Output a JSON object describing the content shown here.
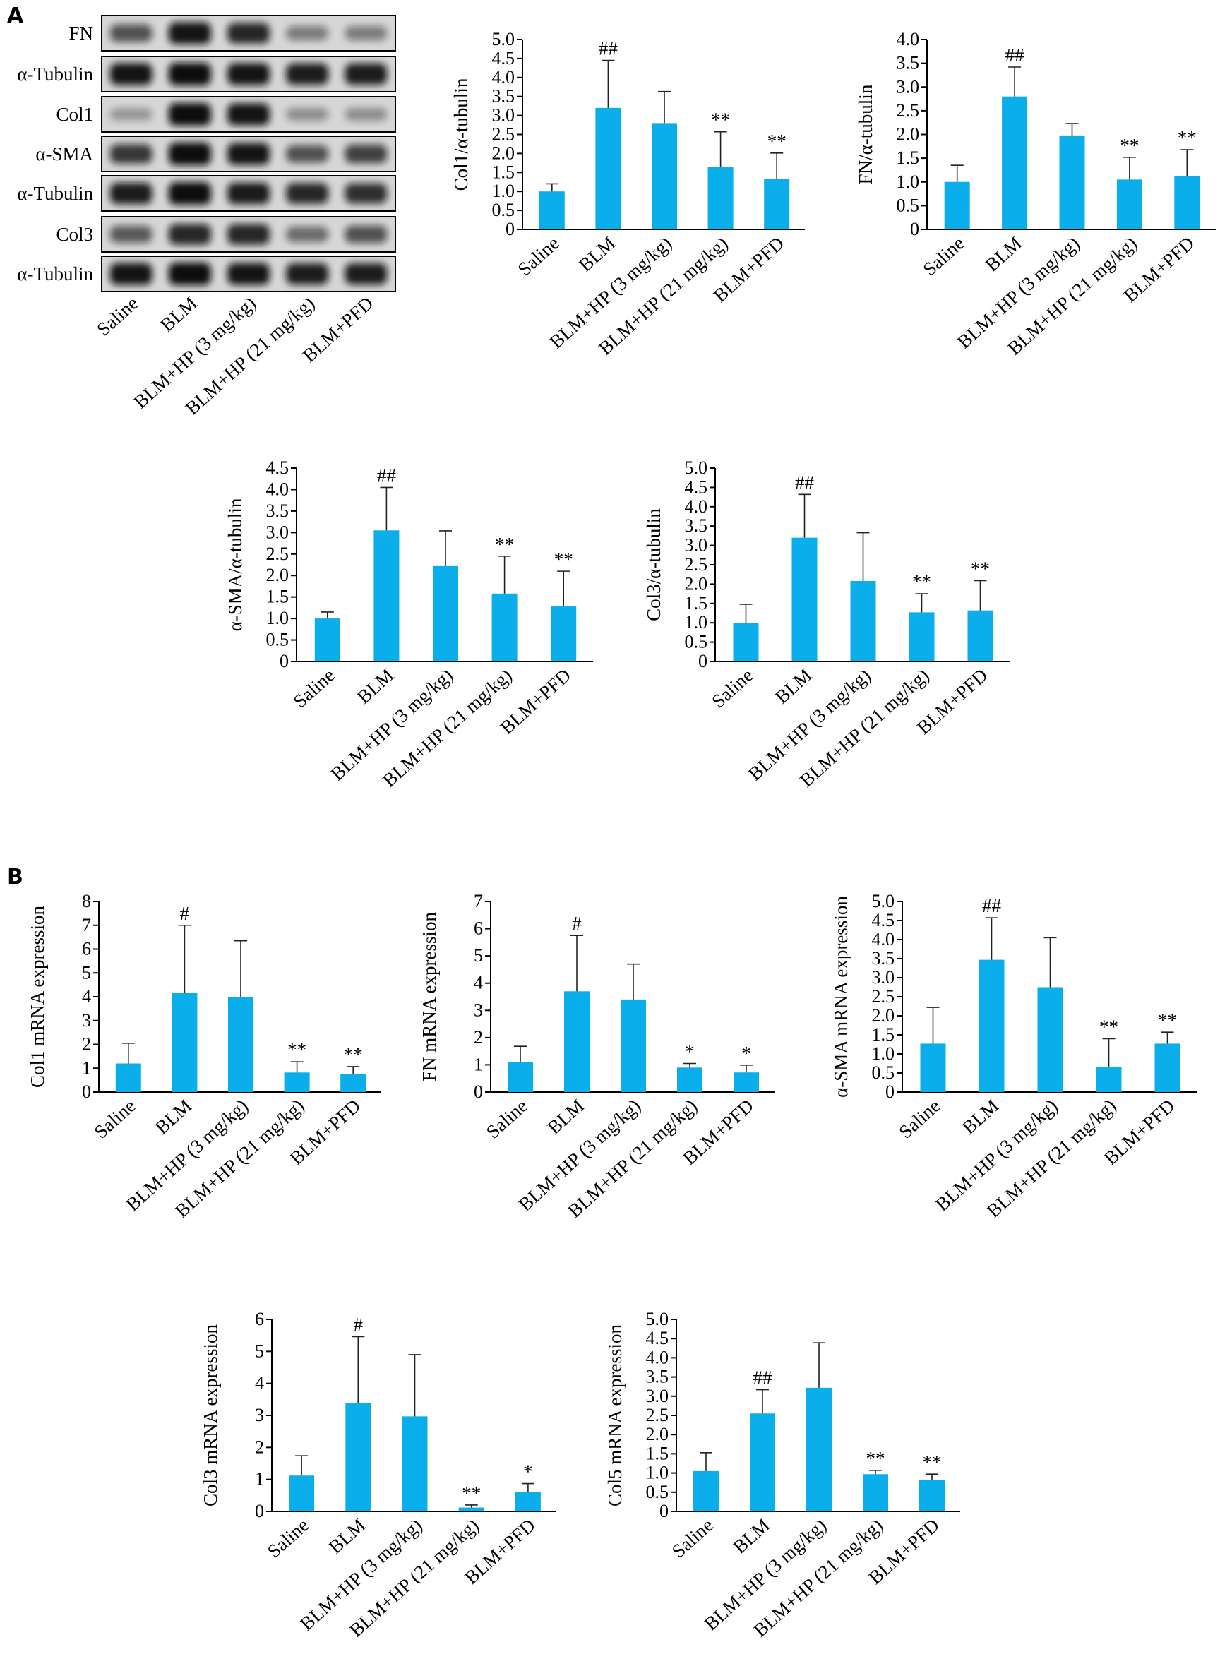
{
  "panel_labels": [
    "A",
    "B"
  ],
  "colors": {
    "bar": "#0aaeea",
    "axis": "#000000",
    "errorbar": "#222222",
    "blot_bg": "#d6d6d6",
    "blot_band": "#111111"
  },
  "blot": {
    "rows": [
      "FN",
      "α-Tubulin",
      "Col1",
      "α-SMA",
      "α-Tubulin",
      "Col3",
      "α-Tubulin"
    ],
    "lanes": [
      "Saline",
      "BLM",
      "BLM+HP (3 mg/kg)",
      "BLM+HP (21 mg/kg)",
      "BLM+PFD"
    ],
    "intensity": [
      [
        0.6,
        0.95,
        0.85,
        0.35,
        0.35
      ],
      [
        0.95,
        1.0,
        0.95,
        0.9,
        0.9
      ],
      [
        0.2,
        1.0,
        0.95,
        0.25,
        0.25
      ],
      [
        0.75,
        1.0,
        0.95,
        0.6,
        0.7
      ],
      [
        0.9,
        1.0,
        0.92,
        0.85,
        0.8
      ],
      [
        0.55,
        0.85,
        0.85,
        0.45,
        0.6
      ],
      [
        0.95,
        1.0,
        0.95,
        0.9,
        0.9
      ]
    ]
  },
  "chart_data": [
    {
      "type": "bar",
      "panel": "A",
      "categories": [
        "Saline",
        "BLM",
        "BLM+HP (3 mg/kg)",
        "BLM+HP (21 mg/kg)",
        "BLM+PFD"
      ],
      "values": [
        1.0,
        3.2,
        2.8,
        1.65,
        1.33
      ],
      "errors": [
        0.2,
        1.25,
        0.83,
        0.92,
        0.68
      ],
      "annotations": [
        "",
        "##",
        "",
        "**",
        "**"
      ],
      "ylabel": "Col1/α-tubulin",
      "ylim": [
        0,
        5.0
      ],
      "yticks": [
        "0",
        "0.5",
        "1.0",
        "1.5",
        "2.0",
        "2.5",
        "3.0",
        "3.5",
        "4.0",
        "4.5",
        "5.0"
      ],
      "ymax": 5.0
    },
    {
      "type": "bar",
      "panel": "A",
      "categories": [
        "Saline",
        "BLM",
        "BLM+HP (3 mg/kg)",
        "BLM+HP (21 mg/kg)",
        "BLM+PFD"
      ],
      "values": [
        1.0,
        2.8,
        1.98,
        1.05,
        1.13
      ],
      "errors": [
        0.35,
        0.62,
        0.25,
        0.47,
        0.55
      ],
      "annotations": [
        "",
        "##",
        "",
        "**",
        "**"
      ],
      "ylabel": "FN/α-tubulin",
      "ylim": [
        0,
        4.0
      ],
      "yticks": [
        "0",
        "0.5",
        "1.0",
        "1.5",
        "2.0",
        "2.5",
        "3.0",
        "3.5",
        "4.0"
      ],
      "ymax": 4.0
    },
    {
      "type": "bar",
      "panel": "A",
      "categories": [
        "Saline",
        "BLM",
        "BLM+HP (3 mg/kg)",
        "BLM+HP (21 mg/kg)",
        "BLM+PFD"
      ],
      "values": [
        1.0,
        3.05,
        2.22,
        1.58,
        1.28
      ],
      "errors": [
        0.15,
        1.0,
        0.82,
        0.87,
        0.82
      ],
      "annotations": [
        "",
        "##",
        "",
        "**",
        "**"
      ],
      "ylabel": "α-SMA/α-tubulin",
      "ylim": [
        0,
        4.5
      ],
      "yticks": [
        "0",
        "0.5",
        "1.0",
        "1.5",
        "2.0",
        "2.5",
        "3.0",
        "3.5",
        "4.0",
        "4.5"
      ],
      "ymax": 4.5
    },
    {
      "type": "bar",
      "panel": "A",
      "categories": [
        "Saline",
        "BLM",
        "BLM+HP (3 mg/kg)",
        "BLM+HP (21 mg/kg)",
        "BLM+PFD"
      ],
      "values": [
        1.0,
        3.2,
        2.08,
        1.27,
        1.32
      ],
      "errors": [
        0.48,
        1.12,
        1.25,
        0.48,
        0.77
      ],
      "annotations": [
        "",
        "##",
        "",
        "**",
        "**"
      ],
      "ylabel": "Col3/α-tubulin",
      "ylim": [
        0,
        5.0
      ],
      "yticks": [
        "0",
        "0.5",
        "1.0",
        "1.5",
        "2.0",
        "2.5",
        "3.0",
        "3.5",
        "4.0",
        "4.5",
        "5.0"
      ],
      "ymax": 5.0
    },
    {
      "type": "bar",
      "panel": "B",
      "categories": [
        "Saline",
        "BLM",
        "BLM+HP (3 mg/kg)",
        "BLM+HP (21 mg/kg)",
        "BLM+PFD"
      ],
      "values": [
        1.2,
        4.15,
        4.0,
        0.82,
        0.75
      ],
      "errors": [
        0.85,
        2.85,
        2.35,
        0.45,
        0.32
      ],
      "annotations": [
        "",
        "#",
        "",
        "**",
        "**"
      ],
      "ylabel": "Col1 mRNA expression",
      "ylim": [
        0,
        8
      ],
      "yticks": [
        "0",
        "1",
        "2",
        "3",
        "4",
        "5",
        "6",
        "7",
        "8"
      ],
      "ymax": 8
    },
    {
      "type": "bar",
      "panel": "B",
      "categories": [
        "Saline",
        "BLM",
        "BLM+HP (3 mg/kg)",
        "BLM+HP (21 mg/kg)",
        "BLM+PFD"
      ],
      "values": [
        1.1,
        3.7,
        3.4,
        0.9,
        0.72
      ],
      "errors": [
        0.58,
        2.05,
        1.3,
        0.15,
        0.27
      ],
      "annotations": [
        "",
        "#",
        "",
        "*",
        "*"
      ],
      "ylabel": "FN mRNA expression",
      "ylim": [
        0,
        7
      ],
      "yticks": [
        "0",
        "1",
        "2",
        "3",
        "4",
        "5",
        "6",
        "7"
      ],
      "ymax": 7
    },
    {
      "type": "bar",
      "panel": "B",
      "categories": [
        "Saline",
        "BLM",
        "BLM+HP (3 mg/kg)",
        "BLM+HP (21 mg/kg)",
        "BLM+PFD"
      ],
      "values": [
        1.27,
        3.47,
        2.75,
        0.65,
        1.27
      ],
      "errors": [
        0.95,
        1.1,
        1.3,
        0.75,
        0.3
      ],
      "annotations": [
        "",
        "##",
        "",
        "**",
        "**"
      ],
      "ylabel": "α-SMA mRNA expression",
      "ylim": [
        0,
        5.0
      ],
      "yticks": [
        "0",
        "0.5",
        "1.0",
        "1.5",
        "2.0",
        "2.5",
        "3.0",
        "3.5",
        "4.0",
        "4.5",
        "5.0"
      ],
      "ymax": 5.0
    },
    {
      "type": "bar",
      "panel": "B",
      "categories": [
        "Saline",
        "BLM",
        "BLM+HP (3 mg/kg)",
        "BLM+HP (21 mg/kg)",
        "BLM+PFD"
      ],
      "values": [
        1.12,
        3.38,
        2.97,
        0.12,
        0.6
      ],
      "errors": [
        0.62,
        2.08,
        1.93,
        0.08,
        0.27
      ],
      "annotations": [
        "",
        "#",
        "",
        "**",
        "*"
      ],
      "ylabel": "Col3 mRNA expression",
      "ylim": [
        0,
        6
      ],
      "yticks": [
        "0",
        "1",
        "2",
        "3",
        "4",
        "5",
        "6"
      ],
      "ymax": 6
    },
    {
      "type": "bar",
      "panel": "B",
      "categories": [
        "Saline",
        "BLM",
        "BLM+HP (3 mg/kg)",
        "BLM+HP (21 mg/kg)",
        "BLM+PFD"
      ],
      "values": [
        1.05,
        2.55,
        3.22,
        0.97,
        0.82
      ],
      "errors": [
        0.48,
        0.62,
        1.17,
        0.1,
        0.15
      ],
      "annotations": [
        "",
        "##",
        "",
        "**",
        "**"
      ],
      "ylabel": "Col5 mRNA expression",
      "ylim": [
        0,
        5.0
      ],
      "yticks": [
        "0",
        "0.5",
        "1.0",
        "1.5",
        "2.0",
        "2.5",
        "3.0",
        "3.5",
        "4.0",
        "4.5",
        "5.0"
      ],
      "ymax": 5.0
    }
  ]
}
